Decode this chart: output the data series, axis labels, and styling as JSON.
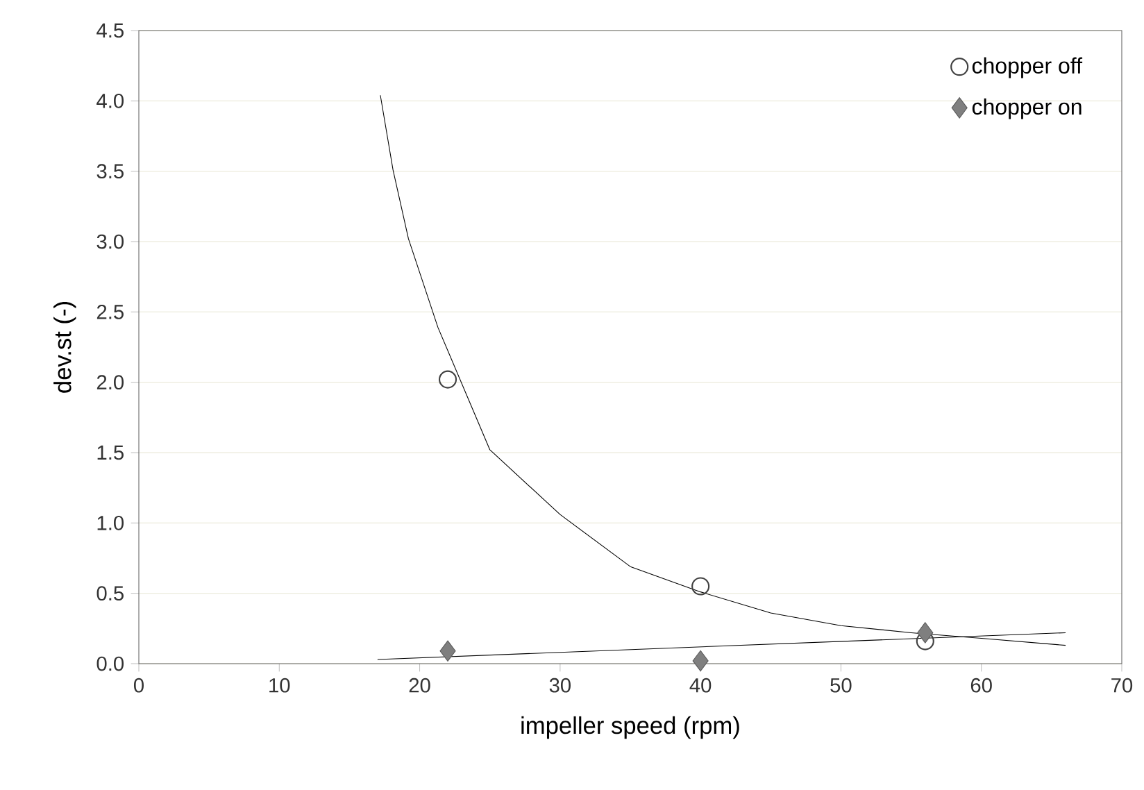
{
  "chart_data": {
    "type": "scatter",
    "xlabel": "impeller speed (rpm)",
    "ylabel": "dev.st (-)",
    "xlim": [
      0,
      70
    ],
    "xticks": [
      0,
      10,
      20,
      30,
      40,
      50,
      60,
      70
    ],
    "ylim": [
      0,
      4.5
    ],
    "yticks": [
      {
        "value": 0,
        "label": "0.0"
      },
      {
        "value": 0.5,
        "label": "0.5"
      },
      {
        "value": 1,
        "label": "1.0"
      },
      {
        "value": 1.5,
        "label": "1.5"
      },
      {
        "value": 2,
        "label": "2.0"
      },
      {
        "value": 2.5,
        "label": "2.5"
      },
      {
        "value": 3,
        "label": "3.0"
      },
      {
        "value": 3.5,
        "label": "3.5"
      },
      {
        "value": 4,
        "label": "4.0"
      },
      {
        "value": 4.5,
        "label": "4.5"
      }
    ],
    "grid": "y",
    "legend": "top right",
    "series": [
      {
        "type": "line",
        "marker": "none",
        "color": "#000000",
        "x": [
          17.2,
          18.1,
          19.2,
          21.3,
          25,
          30,
          35,
          40,
          45,
          50,
          55,
          60,
          66
        ],
        "values": [
          4.04,
          3.51,
          3.02,
          2.39,
          1.52,
          1.06,
          0.69,
          0.51,
          0.36,
          0.27,
          0.22,
          0.18,
          0.13
        ]
      },
      {
        "type": "line",
        "marker": "none",
        "color": "#000000",
        "x": [
          17,
          66
        ],
        "values": [
          0.03,
          0.22
        ]
      },
      {
        "name": "chopper off",
        "marker": "circle",
        "color": "#404040",
        "x": [
          22,
          40,
          56
        ],
        "values": [
          2.02,
          0.55,
          0.16
        ]
      },
      {
        "name": "chopper on",
        "marker": "diamond",
        "color": "#7f7f7f",
        "x": [
          22,
          40,
          56
        ],
        "values": [
          0.09,
          0.02,
          0.22
        ]
      }
    ]
  }
}
